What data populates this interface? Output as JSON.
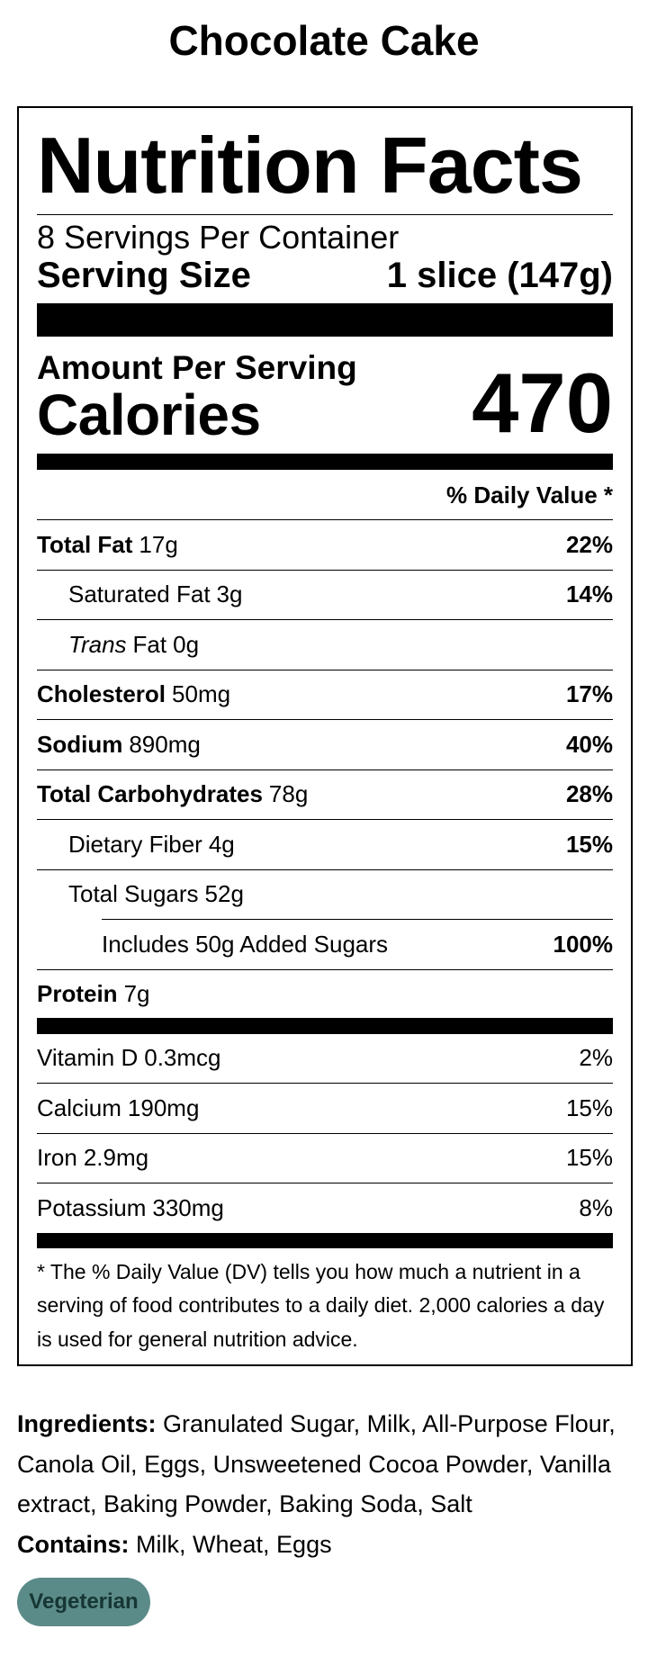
{
  "title": "Chocolate Cake",
  "label": {
    "heading": "Nutrition Facts",
    "servings_per_container": "8 Servings Per Container",
    "serving_size_label": "Serving Size",
    "serving_size": "1 slice (147g)",
    "amount_per_serving": "Amount Per Serving",
    "calories_label": "Calories",
    "calories": 470,
    "daily_value_header": "% Daily Value *",
    "nutrients": [
      {
        "name": "Total Fat",
        "amount": "17g",
        "daily_value": "22%"
      },
      {
        "name": "Saturated Fat",
        "amount": "3g",
        "daily_value": "14%"
      },
      {
        "name_italic": "Trans",
        "name": "Fat",
        "amount": "0g"
      },
      {
        "name": "Cholesterol",
        "amount": "50mg",
        "daily_value": "17%"
      },
      {
        "name": "Sodium",
        "amount": "890mg",
        "daily_value": "40%"
      },
      {
        "name": "Total Carbohydrates",
        "amount": "78g",
        "daily_value": "28%"
      },
      {
        "name": "Dietary Fiber",
        "amount": "4g",
        "daily_value": "15%"
      },
      {
        "name": "Total Sugars",
        "amount": "52g"
      },
      {
        "name": "Includes 50g Added Sugars",
        "daily_value": "100%"
      },
      {
        "name": "Protein",
        "amount": "7g"
      }
    ],
    "vitamins": [
      {
        "name": "Vitamin D",
        "amount": "0.3mcg",
        "daily_value": "2%"
      },
      {
        "name": "Calcium",
        "amount": "190mg",
        "daily_value": "15%"
      },
      {
        "name": "Iron",
        "amount": "2.9mg",
        "daily_value": "15%"
      },
      {
        "name": "Potassium",
        "amount": "330mg",
        "daily_value": "8%"
      }
    ],
    "footnote": "* The % Daily Value (DV) tells you how much a nutrient in a serving of food contributes to a daily diet. 2,000 calories a day is used for general nutrition advice."
  },
  "ingredients_label": "Ingredients:",
  "ingredients": "Granulated Sugar, Milk, All-Purpose Flour, Canola Oil, Eggs, Unsweetened Cocoa Powder, Vanilla extract, Baking Powder, Baking Soda, Salt",
  "contains_label": "Contains:",
  "contains": "Milk, Wheat, Eggs",
  "tag": "Vegeterian"
}
